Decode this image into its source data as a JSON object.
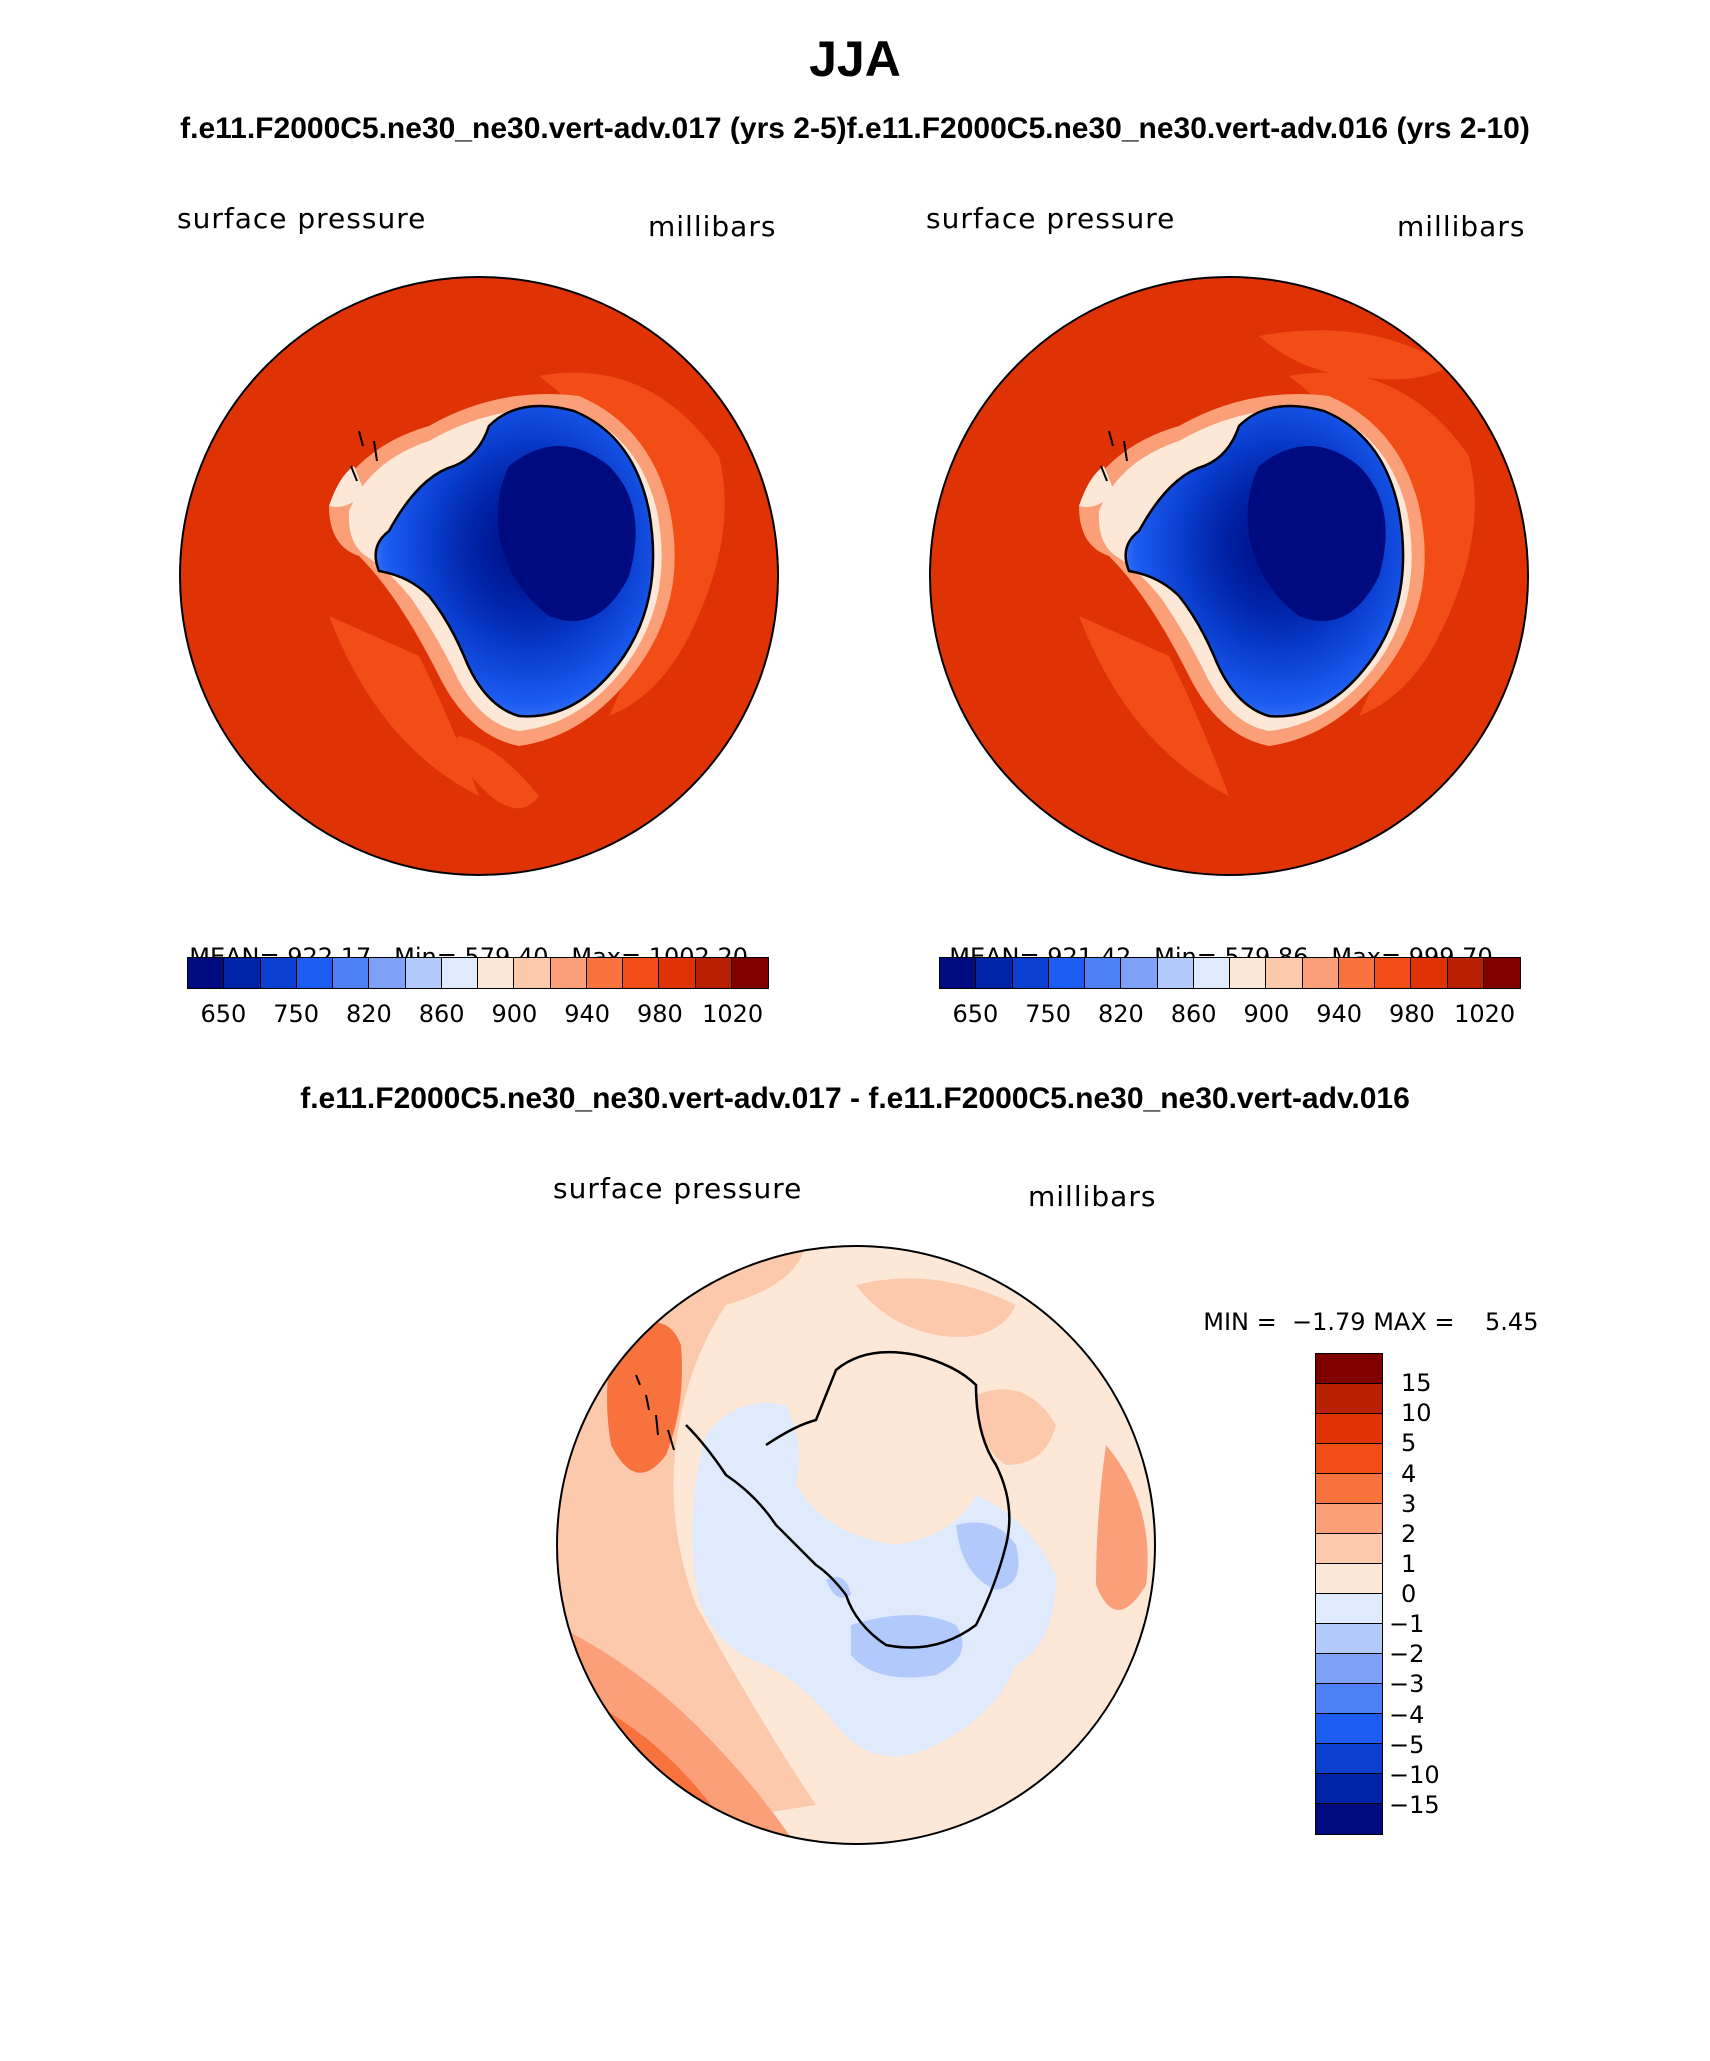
{
  "season": "JJA",
  "top_header": {
    "left_case": "f.e11.F2000C5.ne30_ne30.vert-adv.017 (yrs 2-5)",
    "right_case": "f.e11.F2000C5.ne30_ne30.vert-adv.016 (yrs 2-10)"
  },
  "panels": [
    {
      "variable": "surface pressure",
      "units": "millibars",
      "mean_label": "MEAN=",
      "mean": "922.17",
      "min_label": "Min=",
      "min": "579.40",
      "max_label": "Max=",
      "max": "1002.20"
    },
    {
      "variable": "surface pressure",
      "units": "millibars",
      "mean_label": "MEAN=",
      "mean": "921.42",
      "min_label": "Min=",
      "min": "579.86",
      "max_label": "Max=",
      "max": "999.70"
    }
  ],
  "abs_colorbar": {
    "colors": [
      "#000b80",
      "#0024a8",
      "#0a3fd0",
      "#1c5cf0",
      "#4d80f5",
      "#7ea1f8",
      "#b2c9fb",
      "#dfeafd",
      "#fde8d8",
      "#fcc9ad",
      "#fb9f79",
      "#f8723e",
      "#f24d17",
      "#df3305",
      "#b82003",
      "#800000"
    ],
    "tick_labels": [
      "650",
      "750",
      "820",
      "860",
      "900",
      "940",
      "980",
      "1020"
    ]
  },
  "diff": {
    "title": "f.e11.F2000C5.ne30_ne30.vert-adv.017 - f.e11.F2000C5.ne30_ne30.vert-adv.016",
    "variable": "surface pressure",
    "units": "millibars",
    "min_label": "MIN =",
    "min": "−1.79",
    "max_label": "MAX =",
    "max": "5.45"
  },
  "diff_colorbar": {
    "colors_top_to_bottom": [
      "#800000",
      "#b82003",
      "#df3305",
      "#f24d17",
      "#f8723e",
      "#fb9f79",
      "#fcc9ad",
      "#fde8d8",
      "#dfeafd",
      "#b2c9fb",
      "#7ea1f8",
      "#4d80f5",
      "#1c5cf0",
      "#0a3fd0",
      "#0024a8",
      "#000b80"
    ],
    "tick_labels": [
      "15",
      "10",
      "5",
      "4",
      "3",
      "2",
      "1",
      "0",
      "−1",
      "−2",
      "−3",
      "−4",
      "−5",
      "−10",
      "−15"
    ]
  },
  "map_colors": {
    "ocean_base": "#df3305",
    "ocean_light": "#f24d17",
    "rim": "#c52a04",
    "coast_band": "#fb9f79",
    "coast_inner": "#fde8d8",
    "ice_1": "#7ea1f8",
    "ice_2": "#1c5cf0",
    "ice_3": "#0a3fd0",
    "ice_4": "#0024a8",
    "ice_5": "#000b80",
    "diff_base": "#fde8d8",
    "diff_light_pos": "#fcc9ad",
    "diff_mid_pos": "#fb9f79",
    "diff_strong_pos": "#f8723e",
    "diff_neg": "#dfeafd",
    "diff_neg2": "#b2c9fb"
  }
}
